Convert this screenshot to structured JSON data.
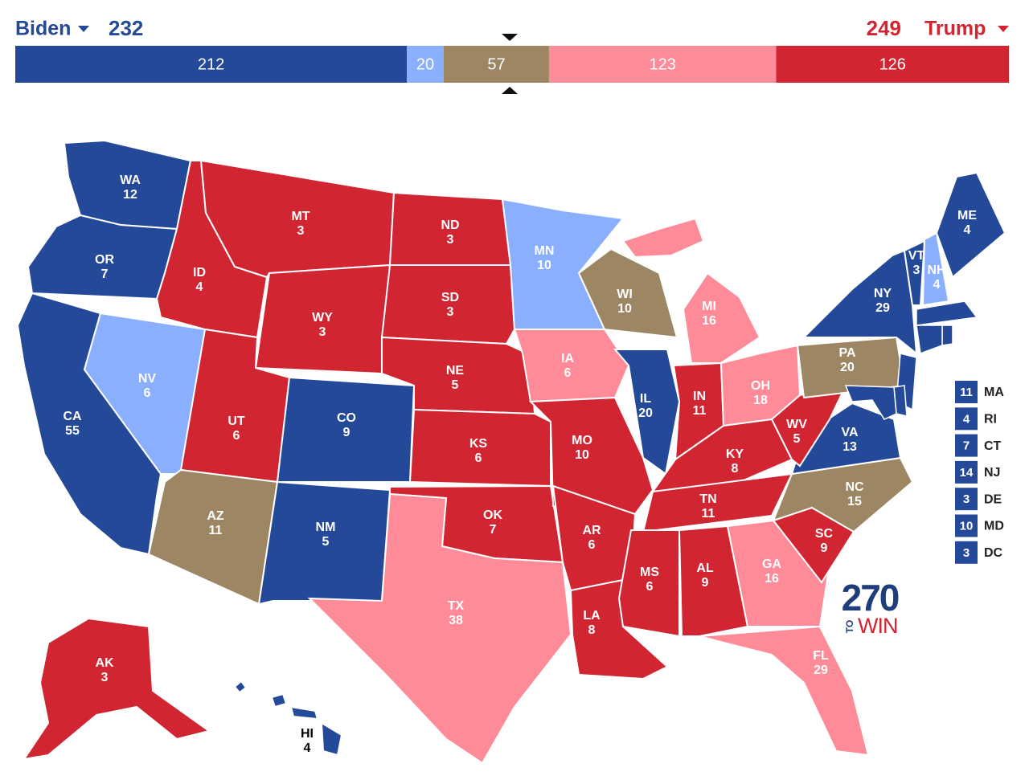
{
  "header": {
    "left": {
      "name": "Biden",
      "total": 232,
      "color": "#244999"
    },
    "right": {
      "name": "Trump",
      "total": 249,
      "color": "#d22532"
    }
  },
  "bar": {
    "segments": [
      {
        "value": 212,
        "color": "#244999"
      },
      {
        "value": 20,
        "color": "#8aaffe"
      },
      {
        "value": 57,
        "color": "#9c8664"
      },
      {
        "value": 123,
        "color": "#ff8b98"
      },
      {
        "value": 126,
        "color": "#d22532"
      }
    ]
  },
  "states": [
    {
      "abbr": "WA",
      "votes": 12,
      "color": "#244999"
    },
    {
      "abbr": "OR",
      "votes": 7,
      "color": "#244999"
    },
    {
      "abbr": "CA",
      "votes": 55,
      "color": "#244999"
    },
    {
      "abbr": "NV",
      "votes": 6,
      "color": "#8aaffe"
    },
    {
      "abbr": "ID",
      "votes": 4,
      "color": "#d22532"
    },
    {
      "abbr": "MT",
      "votes": 3,
      "color": "#d22532"
    },
    {
      "abbr": "WY",
      "votes": 3,
      "color": "#d22532"
    },
    {
      "abbr": "UT",
      "votes": 6,
      "color": "#d22532"
    },
    {
      "abbr": "CO",
      "votes": 9,
      "color": "#244999"
    },
    {
      "abbr": "AZ",
      "votes": 11,
      "color": "#9c8664"
    },
    {
      "abbr": "NM",
      "votes": 5,
      "color": "#244999"
    },
    {
      "abbr": "ND",
      "votes": 3,
      "color": "#d22532"
    },
    {
      "abbr": "SD",
      "votes": 3,
      "color": "#d22532"
    },
    {
      "abbr": "NE",
      "votes": 5,
      "color": "#d22532"
    },
    {
      "abbr": "KS",
      "votes": 6,
      "color": "#d22532"
    },
    {
      "abbr": "OK",
      "votes": 7,
      "color": "#d22532"
    },
    {
      "abbr": "TX",
      "votes": 38,
      "color": "#ff8b98"
    },
    {
      "abbr": "MN",
      "votes": 10,
      "color": "#8aaffe"
    },
    {
      "abbr": "IA",
      "votes": 6,
      "color": "#ff8b98"
    },
    {
      "abbr": "MO",
      "votes": 10,
      "color": "#d22532"
    },
    {
      "abbr": "AR",
      "votes": 6,
      "color": "#d22532"
    },
    {
      "abbr": "LA",
      "votes": 8,
      "color": "#d22532"
    },
    {
      "abbr": "WI",
      "votes": 10,
      "color": "#9c8664"
    },
    {
      "abbr": "IL",
      "votes": 20,
      "color": "#244999"
    },
    {
      "abbr": "MI",
      "votes": 16,
      "color": "#ff8b98"
    },
    {
      "abbr": "IN",
      "votes": 11,
      "color": "#d22532"
    },
    {
      "abbr": "OH",
      "votes": 18,
      "color": "#ff8b98"
    },
    {
      "abbr": "KY",
      "votes": 8,
      "color": "#d22532"
    },
    {
      "abbr": "TN",
      "votes": 11,
      "color": "#d22532"
    },
    {
      "abbr": "MS",
      "votes": 6,
      "color": "#d22532"
    },
    {
      "abbr": "AL",
      "votes": 9,
      "color": "#d22532"
    },
    {
      "abbr": "GA",
      "votes": 16,
      "color": "#ff8b98"
    },
    {
      "abbr": "FL",
      "votes": 29,
      "color": "#ff8b98"
    },
    {
      "abbr": "SC",
      "votes": 9,
      "color": "#d22532"
    },
    {
      "abbr": "NC",
      "votes": 15,
      "color": "#9c8664"
    },
    {
      "abbr": "VA",
      "votes": 13,
      "color": "#244999"
    },
    {
      "abbr": "WV",
      "votes": 5,
      "color": "#d22532"
    },
    {
      "abbr": "PA",
      "votes": 20,
      "color": "#9c8664"
    },
    {
      "abbr": "NY",
      "votes": 29,
      "color": "#244999"
    },
    {
      "abbr": "VT",
      "votes": 3,
      "color": "#244999"
    },
    {
      "abbr": "NH",
      "votes": 4,
      "color": "#8aaffe"
    },
    {
      "abbr": "ME",
      "votes": 4,
      "color": "#244999"
    },
    {
      "abbr": "AK",
      "votes": 3,
      "color": "#d22532"
    },
    {
      "abbr": "HI",
      "votes": 4,
      "color": "#244999"
    }
  ],
  "small_states": [
    {
      "abbr": "MA",
      "votes": 11,
      "color": "#244999"
    },
    {
      "abbr": "RI",
      "votes": 4,
      "color": "#244999"
    },
    {
      "abbr": "CT",
      "votes": 7,
      "color": "#244999"
    },
    {
      "abbr": "NJ",
      "votes": 14,
      "color": "#244999"
    },
    {
      "abbr": "DE",
      "votes": 3,
      "color": "#244999"
    },
    {
      "abbr": "MD",
      "votes": 10,
      "color": "#244999"
    },
    {
      "abbr": "DC",
      "votes": 3,
      "color": "#244999"
    }
  ],
  "logo": {
    "number": "270",
    "small": "TO",
    "word": "WIN"
  }
}
